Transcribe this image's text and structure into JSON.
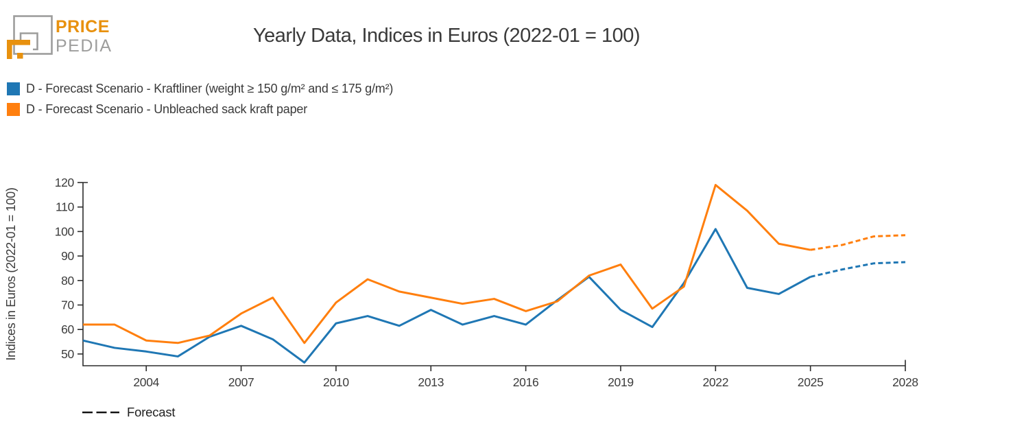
{
  "logo": {
    "text_top": "PRICE",
    "text_bottom": "PEDIA",
    "orange": "#E8910E",
    "gray": "#9D9D9C"
  },
  "header": {
    "title": "Yearly Data, Indices in Euros (2022-01 = 100)"
  },
  "forecast_legend": {
    "label": "Forecast"
  },
  "chart_data": {
    "type": "line",
    "title": "Yearly Data, Indices in Euros (2022-01 = 100)",
    "xlabel": "",
    "ylabel": "Indices in Euros (2022-01 = 100)",
    "x": [
      2002,
      2003,
      2004,
      2005,
      2006,
      2007,
      2008,
      2009,
      2010,
      2011,
      2012,
      2013,
      2014,
      2015,
      2016,
      2017,
      2018,
      2019,
      2020,
      2021,
      2022,
      2023,
      2024,
      2025,
      2026,
      2027,
      2028
    ],
    "series": [
      {
        "name": "D - Forecast Scenario - Kraftliner (weight ≥ 150 g/m² and ≤ 175 g/m²)",
        "color": "#1f77b4",
        "values": [
          55.5,
          52.5,
          51,
          49,
          57,
          61.5,
          56,
          46.5,
          62.5,
          65.5,
          61.5,
          68,
          62,
          65.5,
          62,
          72,
          81.5,
          68,
          61,
          79,
          101,
          77,
          74.5,
          81.5,
          84.5,
          87,
          87.5
        ]
      },
      {
        "name": "D - Forecast Scenario - Unbleached sack kraft paper",
        "color": "#ff7f0e",
        "values": [
          62,
          62,
          55.5,
          54.5,
          57.5,
          66.5,
          73,
          54.5,
          71,
          80.5,
          75.5,
          73,
          70.5,
          72.5,
          67.5,
          71.5,
          82,
          86.5,
          68.5,
          77.5,
          119,
          108.5,
          95,
          92.5,
          94.5,
          98,
          98.5
        ]
      }
    ],
    "forecast_start_x": 2025,
    "forecast_linestyle": "dashed",
    "xlim": [
      2002,
      2028
    ],
    "ylim": [
      45.2,
      120
    ],
    "xticks": [
      2004,
      2007,
      2010,
      2013,
      2016,
      2019,
      2022,
      2025,
      2028
    ],
    "yticks": [
      50,
      60,
      70,
      80,
      90,
      100,
      110,
      120
    ],
    "grid": false,
    "legend_position": "top-left",
    "axis_color": "#2b2b2b"
  }
}
